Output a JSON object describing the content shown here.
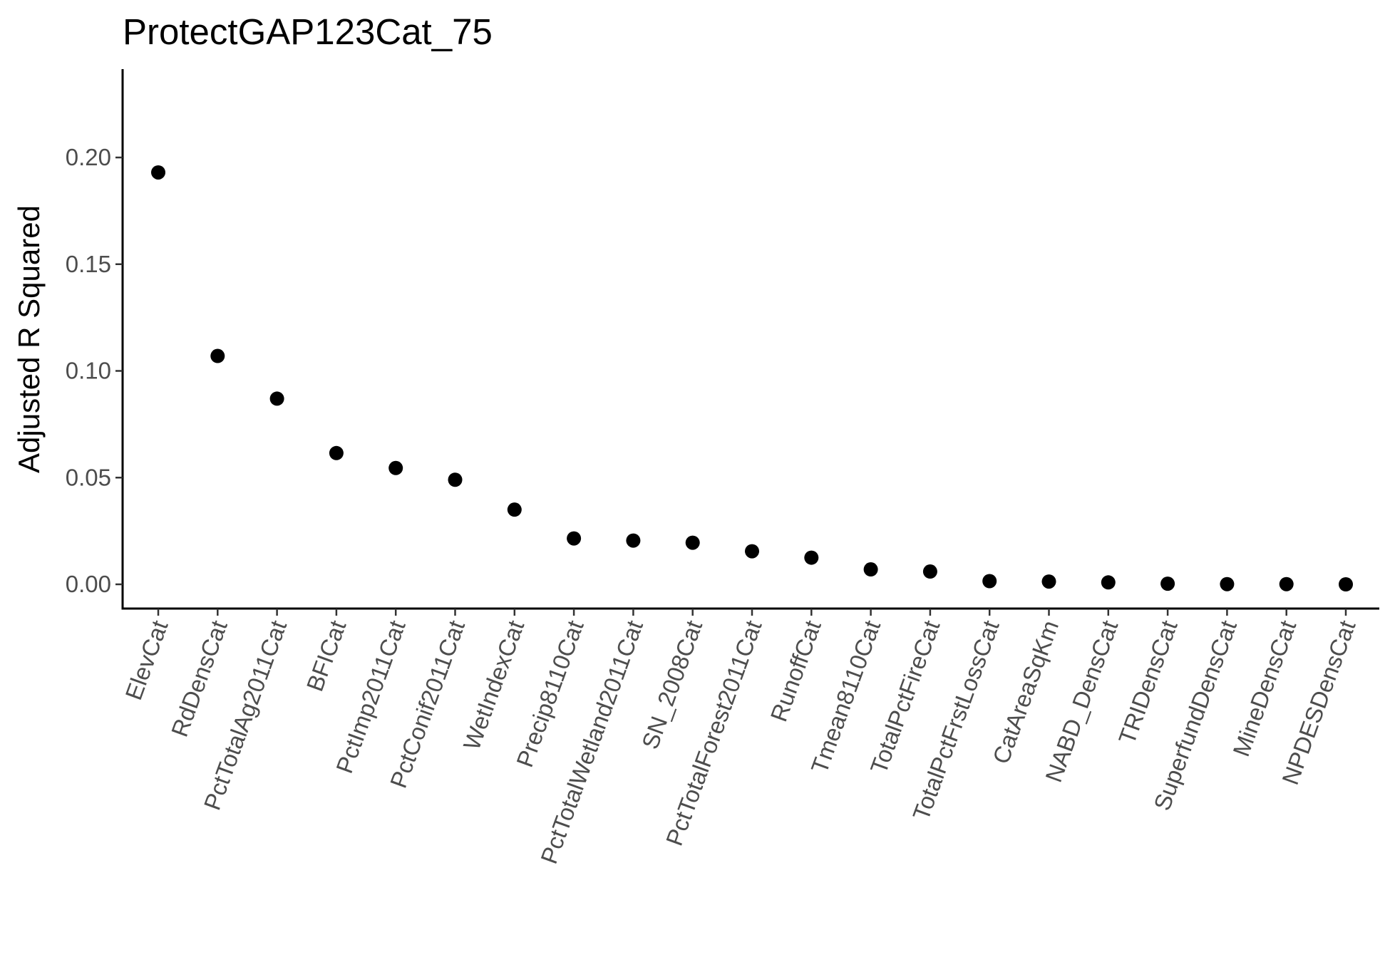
{
  "chart_data": {
    "type": "scatter",
    "title": "ProtectGAP123Cat_75",
    "xlabel": "",
    "ylabel": "Adjusted R Squared",
    "categories": [
      "ElevCat",
      "RdDensCat",
      "PctTotalAg2011Cat",
      "BFICat",
      "PctImp2011Cat",
      "PctConif2011Cat",
      "WetIndexCat",
      "Precip8110Cat",
      "PctTotalWetland2011Cat",
      "SN_2008Cat",
      "PctTotalForest2011Cat",
      "RunoffCat",
      "Tmean8110Cat",
      "TotalPctFireCat",
      "TotalPctFrstLossCat",
      "CatAreaSqKm",
      "NABD_DensCat",
      "TRIDensCat",
      "SuperfundDensCat",
      "MineDensCat",
      "NPDESDensCat"
    ],
    "values": [
      0.193,
      0.107,
      0.087,
      0.0615,
      0.0545,
      0.049,
      0.035,
      0.0215,
      0.0205,
      0.0195,
      0.0155,
      0.0125,
      0.007,
      0.006,
      0.0015,
      0.0013,
      0.0009,
      0.0003,
      0.0001,
      0.0001,
      0.0
    ],
    "yticks": [
      "0.00",
      "0.05",
      "0.10",
      "0.15",
      "0.20"
    ],
    "ylim": [
      -0.012,
      0.241
    ],
    "grid": false,
    "legend": "none",
    "marker_color": "#000000"
  }
}
